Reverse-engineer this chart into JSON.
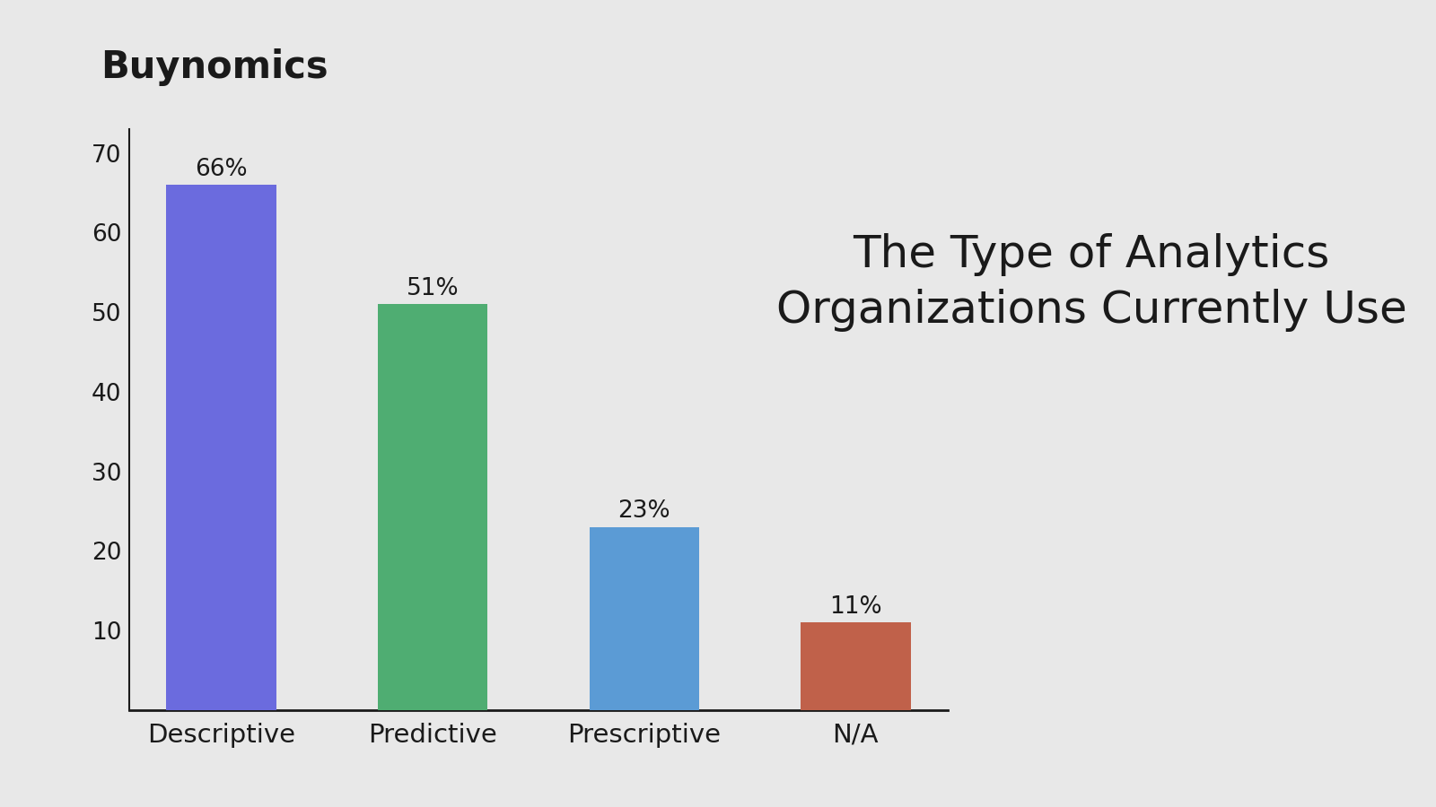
{
  "categories": [
    "Descriptive",
    "Predictive",
    "Prescriptive",
    "N/A"
  ],
  "values": [
    66,
    51,
    23,
    11
  ],
  "labels": [
    "66%",
    "51%",
    "23%",
    "11%"
  ],
  "bar_colors": [
    "#6B6BDE",
    "#4FAD72",
    "#5B9BD5",
    "#C0614A"
  ],
  "background_color": "#E8E8E8",
  "title_line1": "The Type of Analytics",
  "title_line2": "Organizations Currently Use",
  "brand_name": "Buynomics",
  "title_fontsize": 36,
  "brand_fontsize": 30,
  "label_fontsize": 19,
  "tick_fontsize": 19,
  "xtick_fontsize": 21,
  "ylim": [
    0,
    73
  ],
  "yticks": [
    10,
    20,
    30,
    40,
    50,
    60,
    70
  ]
}
